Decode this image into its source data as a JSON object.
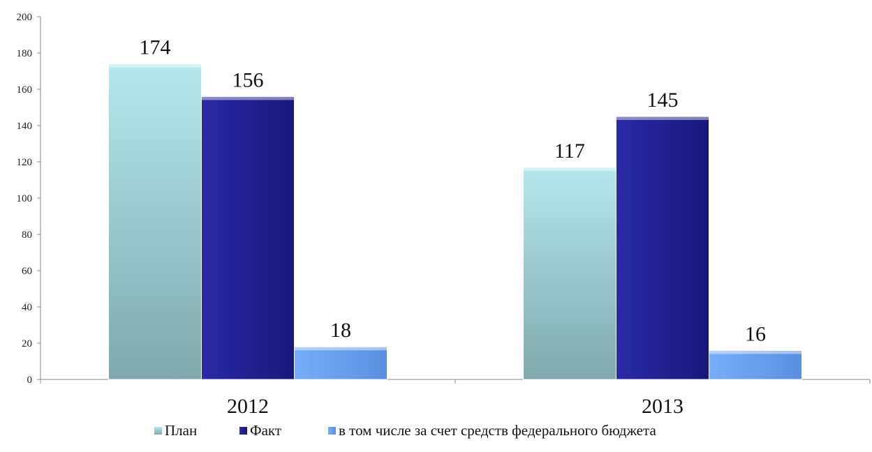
{
  "chart_data": {
    "type": "bar",
    "categories": [
      "2012",
      "2013"
    ],
    "series": [
      {
        "name": "План",
        "values": [
          174,
          117
        ],
        "color": "#a8dde0"
      },
      {
        "name": "Факт",
        "values": [
          156,
          145
        ],
        "color": "#1f1f96"
      },
      {
        "name": "в том числе за счет средств федерального бюджета",
        "values": [
          18,
          16
        ],
        "color": "#6aa2f2"
      }
    ],
    "yticks": [
      0,
      20,
      40,
      60,
      80,
      100,
      120,
      140,
      160,
      180,
      200
    ],
    "ylim": [
      0,
      200
    ],
    "grid": false,
    "legend": "bottom"
  }
}
